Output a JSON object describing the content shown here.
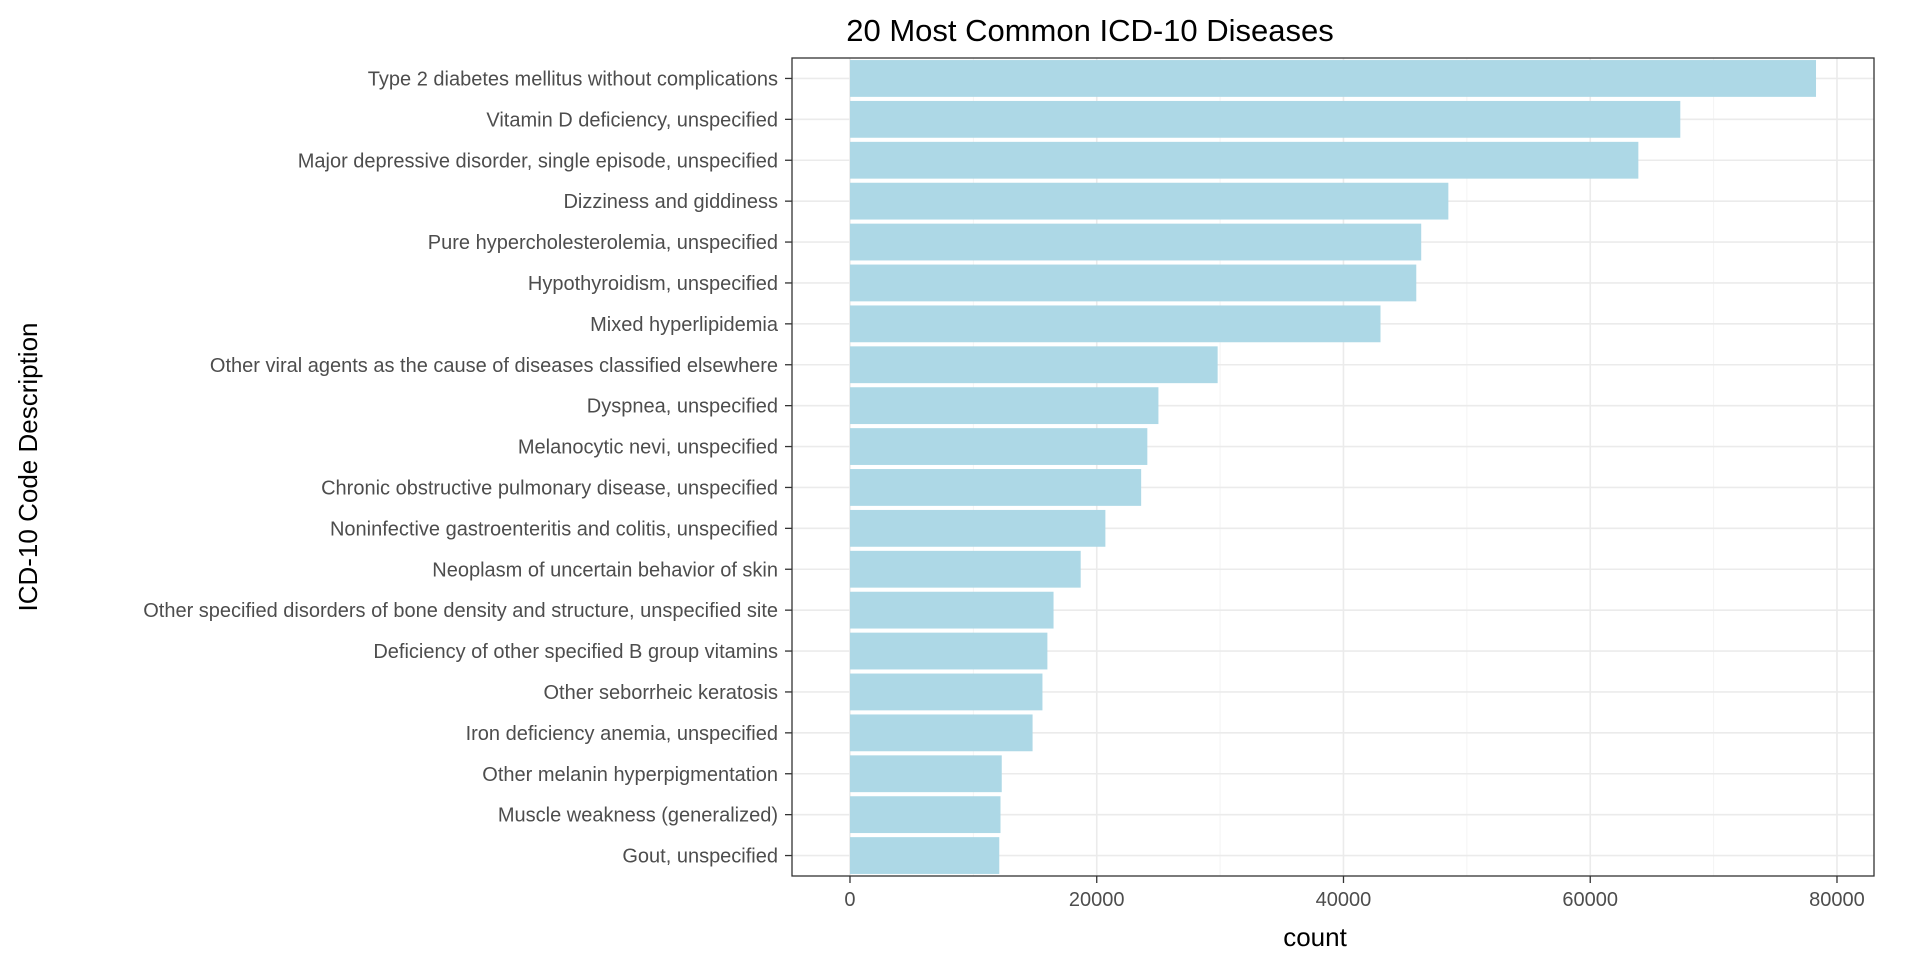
{
  "chart_data": {
    "type": "bar",
    "orientation": "horizontal",
    "title": "20 Most Common ICD-10 Diseases",
    "xlabel": "count",
    "ylabel": "ICD-10 Code Description",
    "xlim": [
      -4700,
      83000
    ],
    "x_ticks": [
      0,
      20000,
      40000,
      60000,
      80000
    ],
    "x_tick_labels": [
      "0",
      "20000",
      "40000",
      "60000",
      "80000"
    ],
    "grid": true,
    "bar_color": "#add8e6",
    "categories": [
      "Type 2 diabetes mellitus without complications",
      "Vitamin D deficiency, unspecified",
      "Major depressive disorder, single episode, unspecified",
      "Dizziness and giddiness",
      "Pure hypercholesterolemia, unspecified",
      "Hypothyroidism, unspecified",
      "Mixed hyperlipidemia",
      "Other viral agents as the cause of diseases classified elsewhere",
      "Dyspnea, unspecified",
      "Melanocytic nevi, unspecified",
      "Chronic obstructive pulmonary disease, unspecified",
      "Noninfective gastroenteritis and colitis, unspecified",
      "Neoplasm of uncertain behavior of skin",
      "Other specified disorders of bone density and structure, unspecified site",
      "Deficiency of other specified B group vitamins",
      "Other seborrheic keratosis",
      "Iron deficiency anemia, unspecified",
      "Other melanin hyperpigmentation",
      "Muscle weakness (generalized)",
      "Gout, unspecified"
    ],
    "values": [
      78300,
      67300,
      63900,
      48500,
      46300,
      45900,
      43000,
      29800,
      25000,
      24100,
      23600,
      20700,
      18700,
      16500,
      16000,
      15600,
      14800,
      12300,
      12200,
      12100
    ]
  }
}
